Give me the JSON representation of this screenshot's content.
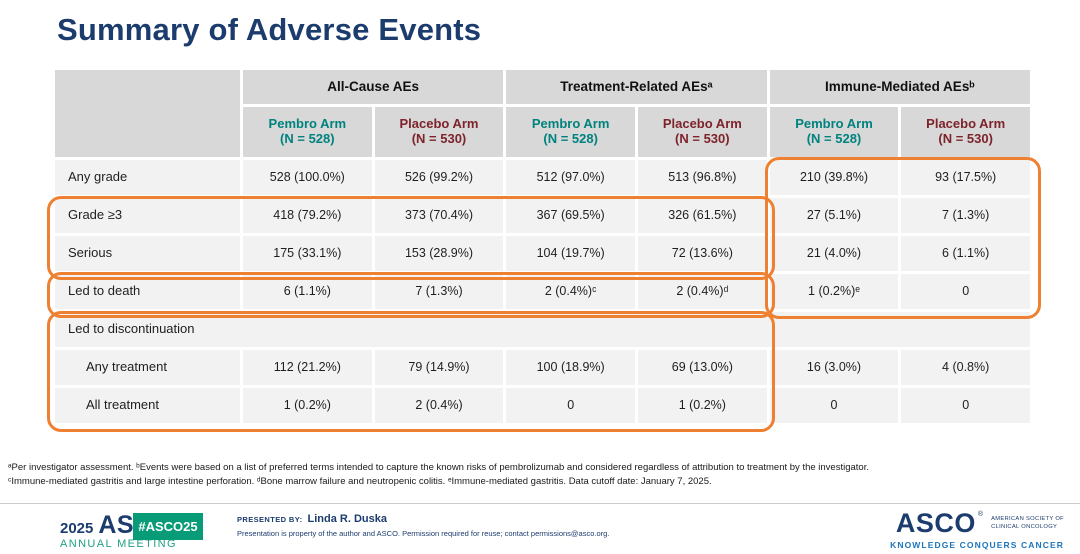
{
  "slide": {
    "title": "Summary of Adverse Events"
  },
  "colors": {
    "title_navy": "#1C3C6E",
    "pembro_teal": "#00827E",
    "placebo_maroon": "#7D232B",
    "highlight_orange": "#EE8031",
    "header_gray": "#D8D8D8",
    "row_gray": "#F2F2F2",
    "badge_green": "#089B77",
    "meeting_green": "#1FA183",
    "tagline_blue": "#1C75BC"
  },
  "table": {
    "groups": [
      {
        "label": "All-Cause AEs"
      },
      {
        "label": "Treatment-Related AEsᵃ"
      },
      {
        "label": "Immune-Mediated AEsᵇ"
      }
    ],
    "arms": [
      {
        "name": "Pembro Arm",
        "n": "(N = 528)"
      },
      {
        "name": "Placebo Arm",
        "n": "(N = 530)"
      },
      {
        "name": "Pembro Arm",
        "n": "(N = 528)"
      },
      {
        "name": "Placebo Arm",
        "n": "(N = 530)"
      },
      {
        "name": "Pembro Arm",
        "n": "(N = 528)"
      },
      {
        "name": "Placebo Arm",
        "n": "(N = 530)"
      }
    ],
    "rows": [
      {
        "label": "Any grade",
        "values": [
          "528 (100.0%)",
          "526 (99.2%)",
          "512 (97.0%)",
          "513 (96.8%)",
          "210 (39.8%)",
          "93 (17.5%)"
        ]
      },
      {
        "label": "Grade ≥3",
        "values": [
          "418 (79.2%)",
          "373 (70.4%)",
          "367 (69.5%)",
          "326 (61.5%)",
          "27 (5.1%)",
          "7 (1.3%)"
        ]
      },
      {
        "label": "Serious",
        "values": [
          "175 (33.1%)",
          "153 (28.9%)",
          "104 (19.7%)",
          "72 (13.6%)",
          "21 (4.0%)",
          "6 (1.1%)"
        ]
      },
      {
        "label": "Led to death",
        "values": [
          "6 (1.1%)",
          "7 (1.3%)",
          "2 (0.4%)ᶜ",
          "2 (0.4%)ᵈ",
          "1 (0.2%)ᵉ",
          "0"
        ]
      },
      {
        "label": "Led to discontinuation",
        "section": true,
        "values": []
      },
      {
        "label": "Any treatment",
        "indent": true,
        "values": [
          "112 (21.2%)",
          "79 (14.9%)",
          "100 (18.9%)",
          "69 (13.0%)",
          "16 (3.0%)",
          "4 (0.8%)"
        ]
      },
      {
        "label": "All treatment",
        "indent": true,
        "values": [
          "1 (0.2%)",
          "2 (0.4%)",
          "0",
          "1 (0.2%)",
          "0",
          "0"
        ]
      }
    ]
  },
  "footnotes": [
    "ᵃPer investigator assessment. ᵇEvents were based on a list of preferred terms intended to capture the known risks of pembrolizumab and considered regardless of attribution to treatment by the investigator.",
    "ᶜImmune-mediated gastritis and large intestine perforation. ᵈBone marrow failure and neutropenic colitis. ᵉImmune-mediated gastritis.  Data cutoff date: January 7, 2025."
  ],
  "footer": {
    "meeting_logo": {
      "year": "2025",
      "org": "ASCO",
      "reg": "®",
      "sub": "ANNUAL MEETING"
    },
    "hashtag": "#ASCO25",
    "presented_by_label": "PRESENTED BY:",
    "presenter": "Linda R. Duska",
    "permission": "Presentation is property of the author and ASCO. Permission required for reuse; contact permissions@asco.org.",
    "asco_logo": {
      "wordmark": "ASCO",
      "reg": "®",
      "society_line1": "AMERICAN SOCIETY OF",
      "society_line2": "CLINICAL ONCOLOGY",
      "tagline": "KNOWLEDGE CONQUERS CANCER"
    }
  }
}
